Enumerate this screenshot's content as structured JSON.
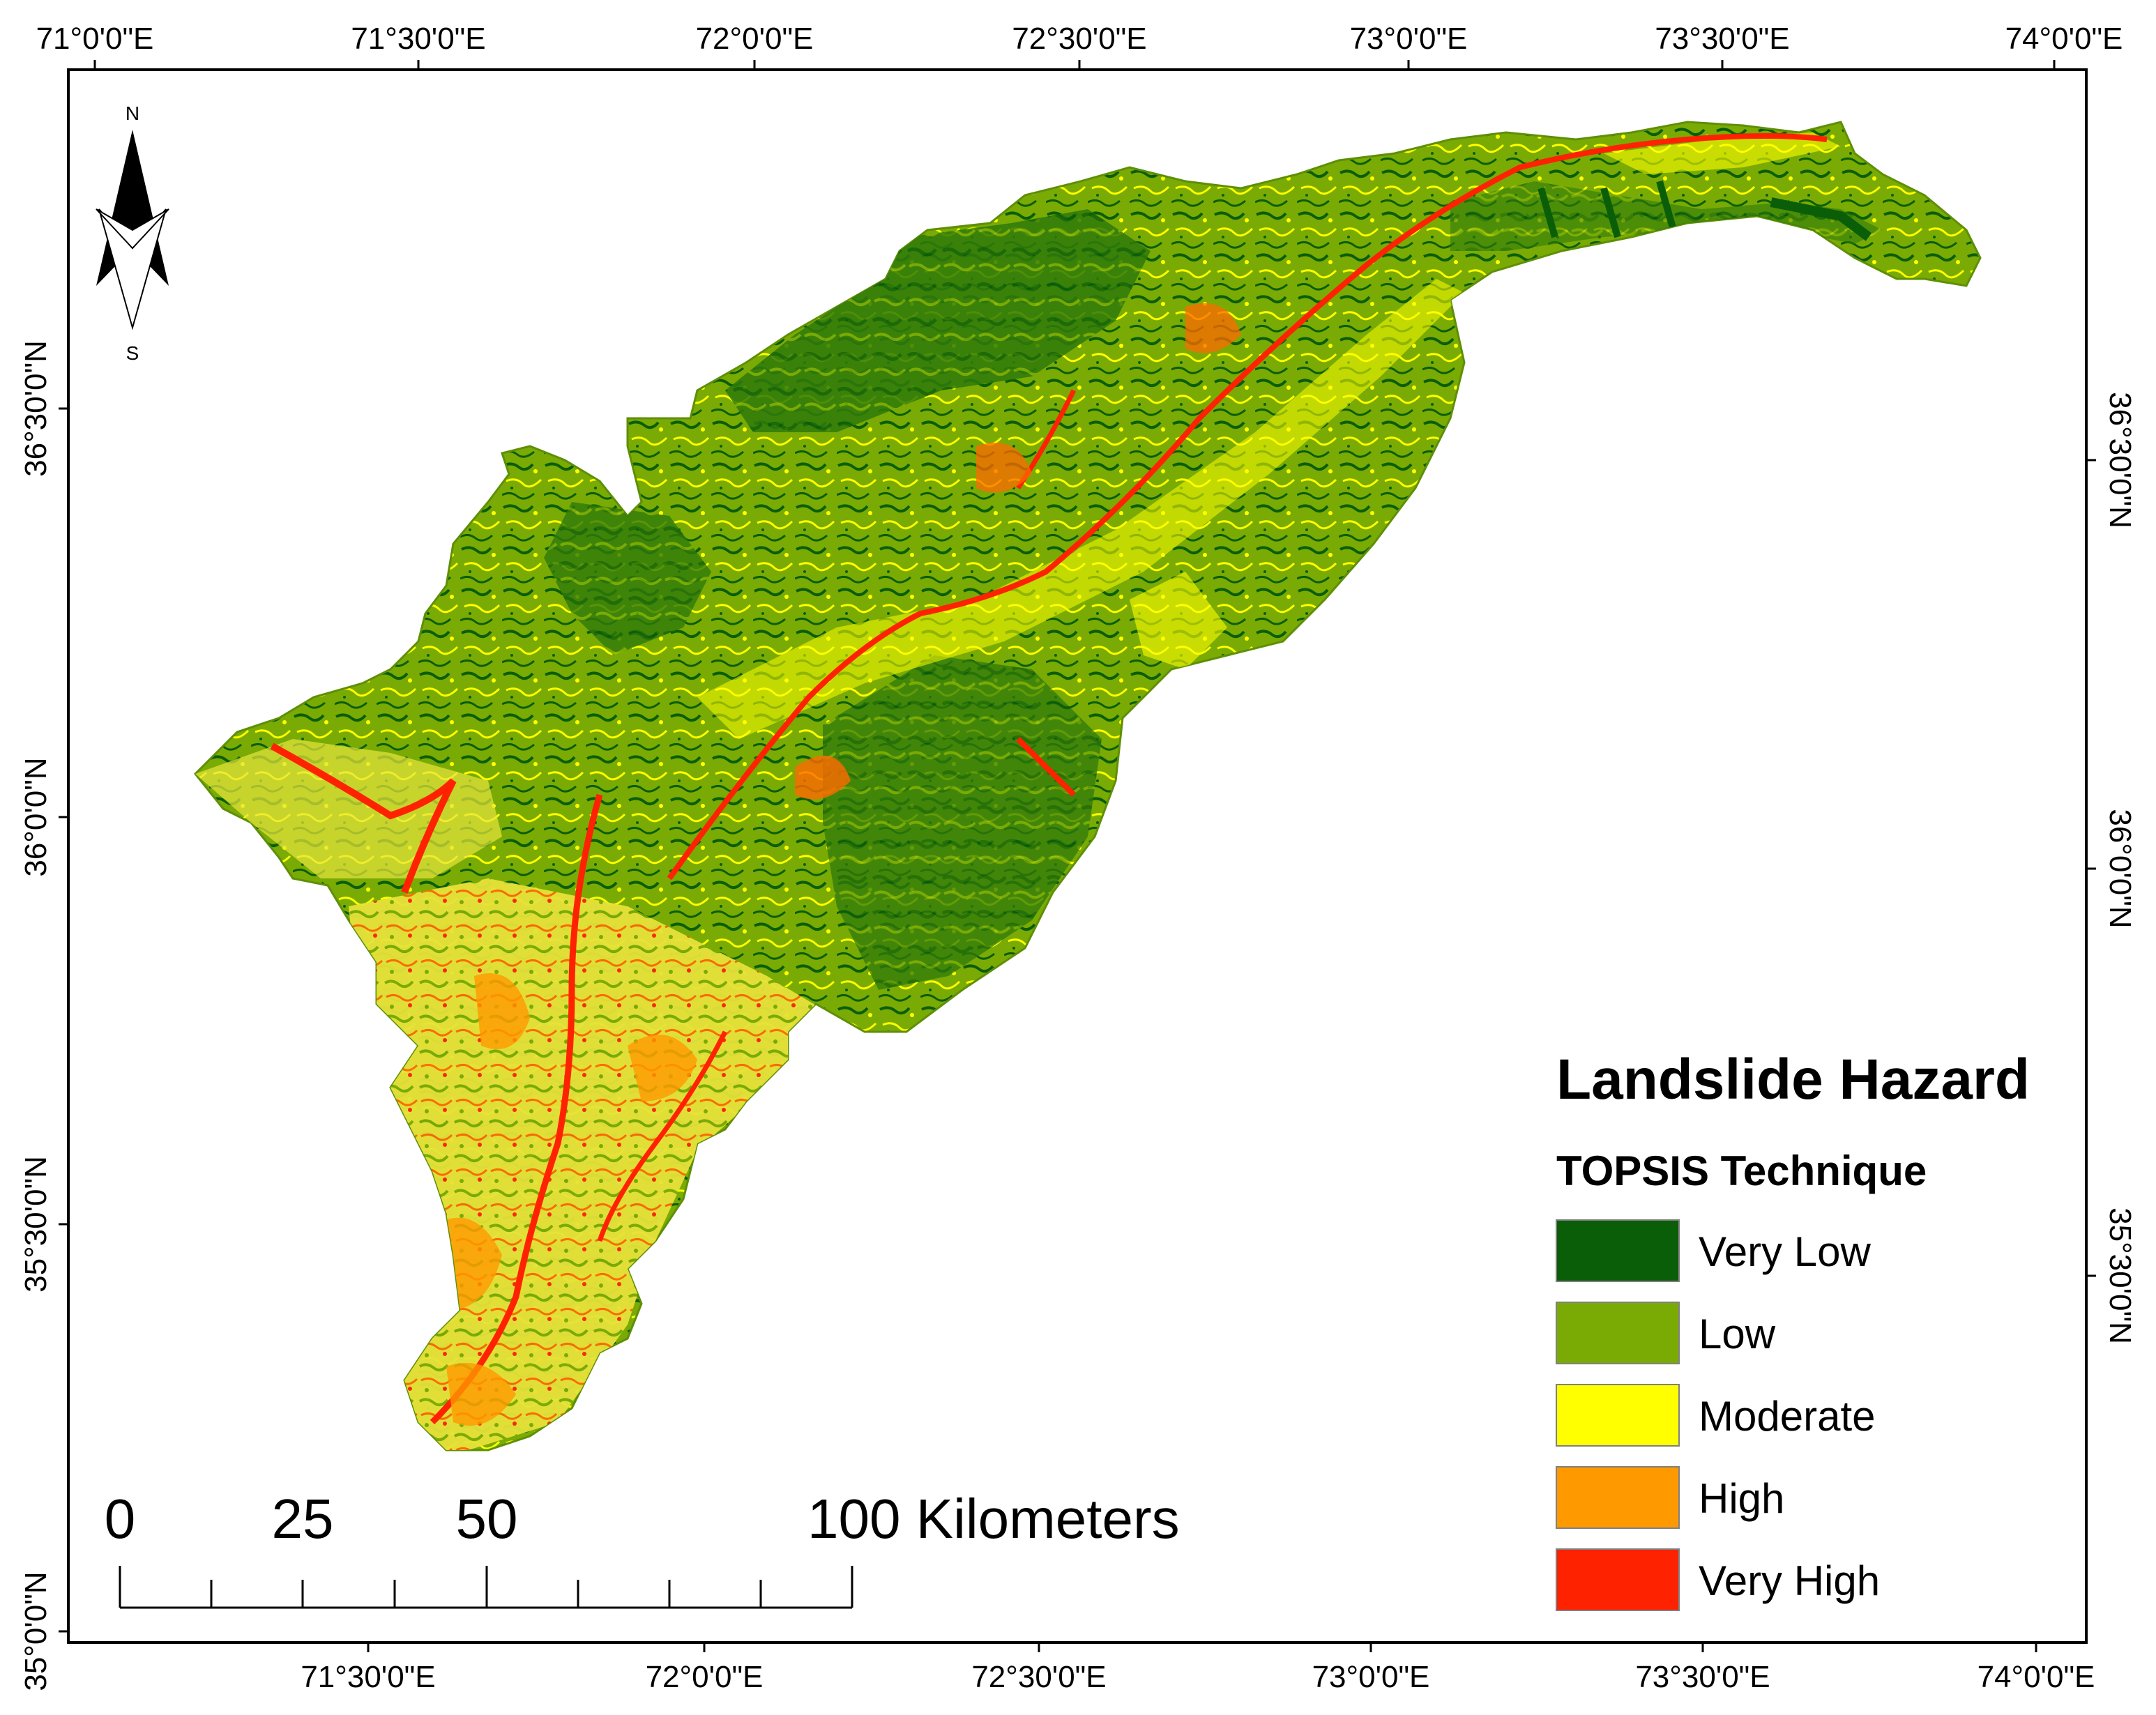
{
  "map": {
    "top_axis_labels": [
      "71°0'0\"E",
      "71°30'0\"E",
      "72°0'0\"E",
      "72°30'0\"E",
      "73°0'0\"E",
      "73°30'0\"E",
      "74°0'0\"E"
    ],
    "bottom_axis_labels": [
      "71°30'0\"E",
      "72°0'0\"E",
      "72°30'0\"E",
      "73°0'0\"E",
      "73°30'0\"E",
      "74°0'0\"E"
    ],
    "left_axis_labels": [
      "36°30'0\"N",
      "36°0'0\"N",
      "35°30'0\"N",
      "35°0'0\"N"
    ],
    "right_axis_labels": [
      "36°30'0\"N",
      "36°0'0\"N",
      "35°30'0\"N"
    ],
    "north_arrow": {
      "n": "N",
      "s": "S",
      "icon": "north-arrow-icon"
    },
    "legend": {
      "title": "Landslide Hazard",
      "subtitle": "TOPSIS Technique",
      "classes": [
        {
          "label": "Very Low",
          "color": "#0b5e08"
        },
        {
          "label": "Low",
          "color": "#7aab05"
        },
        {
          "label": "Moderate",
          "color": "#ffff00"
        },
        {
          "label": "High",
          "color": "#ff9900"
        },
        {
          "label": "Very High",
          "color": "#ff2200"
        }
      ]
    },
    "scale_bar": {
      "labels": [
        "0",
        "25",
        "50",
        "100 Kilometers"
      ]
    }
  }
}
